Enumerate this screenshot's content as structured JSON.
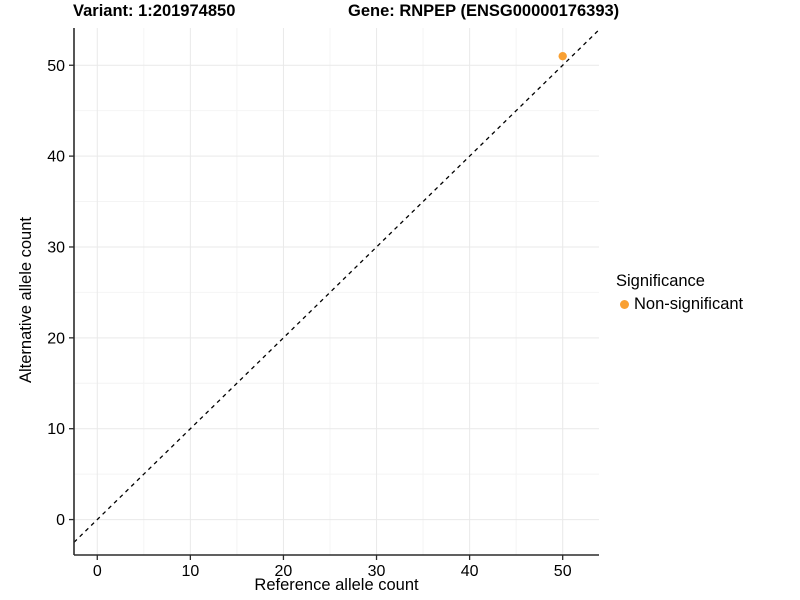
{
  "chart_data": {
    "type": "scatter",
    "title_left": "Variant: 1:201974850",
    "title_right": "Gene: RNPEP (ENSG00000176393)",
    "xlabel": "Reference allele count",
    "ylabel": "Alternative allele count",
    "xlim": [
      -2.5,
      53.9
    ],
    "ylim": [
      -3.9,
      54.1
    ],
    "x_ticks": [
      0,
      10,
      20,
      30,
      40,
      50
    ],
    "y_ticks": [
      0,
      10,
      20,
      30,
      40,
      50
    ],
    "x_minor_ticks": [
      5,
      15,
      25,
      35,
      45
    ],
    "y_minor_ticks": [
      5,
      15,
      25,
      35,
      45
    ],
    "grid": {
      "major": true,
      "minor": true
    },
    "points": [
      {
        "x": 50,
        "y": 51,
        "series": "Non-significant"
      }
    ],
    "identity_line": {
      "slope": 1,
      "intercept": 0,
      "style": "dashed",
      "color": "#000000"
    },
    "legend": {
      "title": "Significance",
      "position": "right",
      "entries": [
        {
          "label": "Non-significant",
          "color": "#F9A032"
        }
      ]
    },
    "colors": {
      "point": "#F9A032",
      "axis": "#2b2b2b",
      "grid_major": "#e9e9e9",
      "grid_minor": "#f4f4f4",
      "tick_text": "#000000",
      "background": "#ffffff"
    }
  }
}
